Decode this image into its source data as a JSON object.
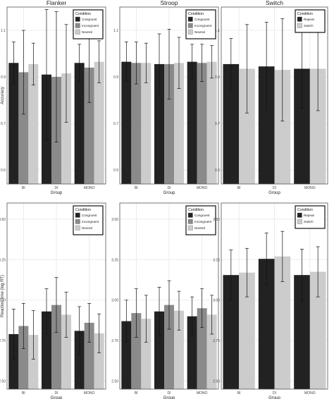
{
  "figure": {
    "colors": {
      "dark": "#222222",
      "mid": "#8a8a8a",
      "light": "#cccccc",
      "grid": "#e6e6e6",
      "border": "#555555"
    },
    "xlabel": "Group",
    "legend_title": "Condition"
  },
  "chart_data": [
    {
      "type": "bar",
      "title": "Flanker",
      "xlabel": "Group",
      "ylabel": "Accuracy",
      "categories": [
        "BI",
        "DI",
        "MONO"
      ],
      "ylim": [
        0.44,
        1.2
      ],
      "yticks": [
        0.5,
        0.7,
        0.9,
        1.1
      ],
      "ytick_labels": [
        "0.5",
        "0.7",
        "0.9",
        "1.1"
      ],
      "legend": {
        "title": "Condition",
        "position": "top-right"
      },
      "series": [
        {
          "name": "Congruent",
          "color": "#222222",
          "values": [
            0.96,
            0.91,
            0.96
          ],
          "errors": [
            0.09,
            0.28,
            0.08
          ]
        },
        {
          "name": "Incongruent",
          "color": "#8a8a8a",
          "values": [
            0.92,
            0.9,
            0.94
          ],
          "errors": [
            0.18,
            0.28,
            0.15
          ]
        },
        {
          "name": "Neutral",
          "color": "#cccccc",
          "values": [
            0.955,
            0.915,
            0.965
          ],
          "errors": [
            0.09,
            0.21,
            0.09
          ]
        }
      ]
    },
    {
      "type": "bar",
      "title": "Stroop",
      "xlabel": "Group",
      "ylabel": "",
      "categories": [
        "BI",
        "DI",
        "MONO"
      ],
      "ylim": [
        0.44,
        1.2
      ],
      "yticks": [
        0.5,
        0.7,
        0.9,
        1.1
      ],
      "ytick_labels": [
        "0.5",
        "0.7",
        "0.9",
        "1.1"
      ],
      "legend": {
        "title": "Condition",
        "position": "top-right"
      },
      "series": [
        {
          "name": "Congruent",
          "color": "#222222",
          "values": [
            0.965,
            0.955,
            0.965
          ],
          "errors": [
            0.085,
            0.13,
            0.075
          ]
        },
        {
          "name": "Incongruent",
          "color": "#8a8a8a",
          "values": [
            0.96,
            0.955,
            0.96
          ],
          "errors": [
            0.09,
            0.15,
            0.08
          ]
        },
        {
          "name": "Neutral",
          "color": "#cccccc",
          "values": [
            0.96,
            0.96,
            0.965
          ],
          "errors": [
            0.085,
            0.11,
            0.07
          ]
        }
      ]
    },
    {
      "type": "bar",
      "title": "Switch",
      "xlabel": "Group",
      "ylabel": "",
      "categories": [
        "BI",
        "DI",
        "MONO"
      ],
      "ylim": [
        0.44,
        1.2
      ],
      "yticks": [
        0.5,
        0.7,
        0.9,
        1.1
      ],
      "ytick_labels": [
        "0.5",
        "0.7",
        "0.9",
        "1.1"
      ],
      "legend": {
        "title": "Condition",
        "position": "top-right"
      },
      "series": [
        {
          "name": "Repeat",
          "color": "#222222",
          "values": [
            0.955,
            0.945,
            0.935
          ],
          "errors": [
            0.11,
            0.19,
            0.17
          ]
        },
        {
          "name": "Switch",
          "color": "#cccccc",
          "values": [
            0.935,
            0.93,
            0.935
          ],
          "errors": [
            0.19,
            0.22,
            0.18
          ]
        }
      ]
    },
    {
      "type": "bar",
      "title": "",
      "xlabel": "Group",
      "ylabel": "Reaction time (log RT)",
      "categories": [
        "BI",
        "DI",
        "MONO"
      ],
      "ylim": [
        2.45,
        3.6
      ],
      "yticks": [
        2.5,
        2.75,
        3.0,
        3.25,
        3.5
      ],
      "ytick_labels": [
        "2.50",
        "2.75",
        "3.00",
        "3.25",
        "3.50"
      ],
      "legend": {
        "title": "Condition",
        "position": "top-right"
      },
      "series": [
        {
          "name": "Congruent",
          "color": "#222222",
          "values": [
            2.79,
            2.93,
            2.81
          ],
          "errors": [
            0.155,
            0.14,
            0.15
          ]
        },
        {
          "name": "Incongruent",
          "color": "#8a8a8a",
          "values": [
            2.84,
            2.97,
            2.86
          ],
          "errors": [
            0.14,
            0.17,
            0.12
          ]
        },
        {
          "name": "Neutral",
          "color": "#cccccc",
          "values": [
            2.785,
            2.91,
            2.795
          ],
          "errors": [
            0.15,
            0.14,
            0.12
          ]
        }
      ]
    },
    {
      "type": "bar",
      "title": "",
      "xlabel": "Group",
      "ylabel": "",
      "categories": [
        "BI",
        "DI",
        "MONO"
      ],
      "ylim": [
        2.45,
        3.6
      ],
      "yticks": [
        2.5,
        2.75,
        3.0,
        3.25,
        3.5
      ],
      "ytick_labels": [
        "2.50",
        "2.75",
        "3.00",
        "3.25",
        "3.50"
      ],
      "legend": {
        "title": "Condition",
        "position": "top-right"
      },
      "series": [
        {
          "name": "Congruent",
          "color": "#222222",
          "values": [
            2.87,
            2.93,
            2.9
          ],
          "errors": [
            0.13,
            0.15,
            0.12
          ]
        },
        {
          "name": "Incongruent",
          "color": "#8a8a8a",
          "values": [
            2.92,
            2.97,
            2.95
          ],
          "errors": [
            0.15,
            0.15,
            0.12
          ]
        },
        {
          "name": "Neutral",
          "color": "#cccccc",
          "values": [
            2.885,
            2.935,
            2.91
          ],
          "errors": [
            0.145,
            0.12,
            0.12
          ]
        }
      ]
    },
    {
      "type": "bar",
      "title": "",
      "xlabel": "Group",
      "ylabel": "",
      "categories": [
        "BI",
        "DI",
        "MONO"
      ],
      "ylim": [
        2.45,
        3.6
      ],
      "yticks": [
        2.5,
        2.75,
        3.0,
        3.25,
        3.5
      ],
      "ytick_labels": [
        "2.50",
        "2.75",
        "3.00",
        "3.25",
        "3.50"
      ],
      "legend": {
        "title": "Condition",
        "position": "top-right"
      },
      "series": [
        {
          "name": "Repeat",
          "color": "#222222",
          "values": [
            3.155,
            3.255,
            3.155
          ],
          "errors": [
            0.155,
            0.16,
            0.16
          ]
        },
        {
          "name": "Switch",
          "color": "#cccccc",
          "values": [
            3.17,
            3.27,
            3.175
          ],
          "errors": [
            0.15,
            0.155,
            0.155
          ]
        }
      ]
    }
  ]
}
